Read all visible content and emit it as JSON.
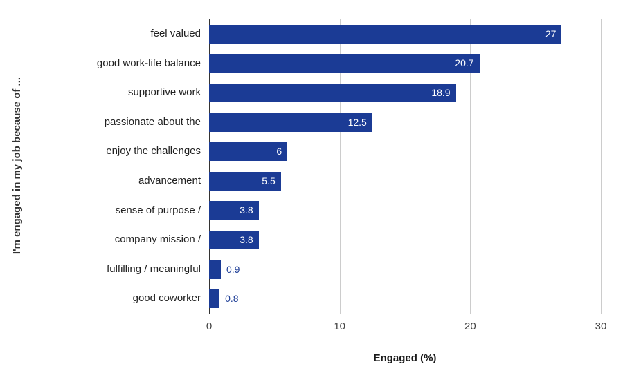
{
  "chart_data": {
    "type": "bar",
    "orientation": "horizontal",
    "title": "",
    "xlabel": "Engaged (%)",
    "ylabel": "I'm engaged in my job because of ...",
    "categories": [
      "feel valued",
      "good work-life balance",
      "supportive work",
      "passionate about the",
      "enjoy the challenges",
      "advancement",
      "sense of purpose /",
      "company mission /",
      "fulfilling / meaningful",
      "good coworker"
    ],
    "values": [
      27,
      20.7,
      18.9,
      12.5,
      6,
      5.5,
      3.8,
      3.8,
      0.9,
      0.8
    ],
    "value_labels": [
      "27",
      "20.7",
      "18.9",
      "12.5",
      "6",
      "5.5",
      "3.8",
      "3.8",
      "0.9",
      "0.8"
    ],
    "xlim": [
      0,
      30
    ],
    "xticks": [
      0,
      10,
      20,
      30
    ],
    "grid": true,
    "legend": "none",
    "colors": {
      "bar": "#1b3b95",
      "inside_label": "#ffffff",
      "outside_label": "#1b3b95",
      "gridline": "#cccccc",
      "zero_axis": "#333333"
    },
    "inside_label_threshold": 2
  }
}
